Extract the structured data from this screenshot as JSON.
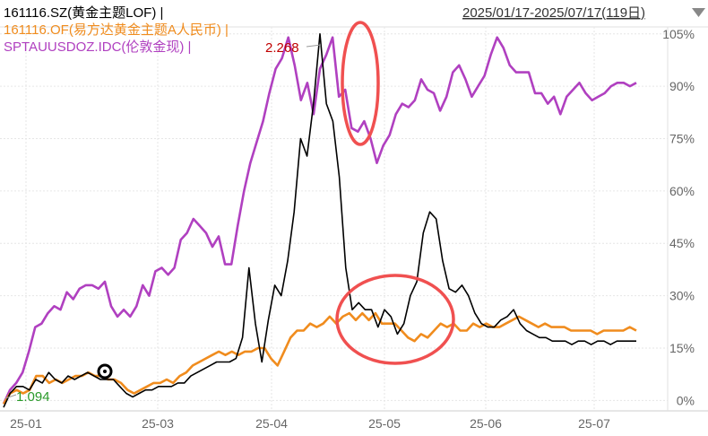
{
  "header": {
    "legend": [
      {
        "label": "161116.SZ(黄金主题LOF) |",
        "color": "#000000"
      },
      {
        "label": "161116.OF(易方达黄金主题A人民币) |",
        "color": "#f08c1e"
      },
      {
        "label": "SPTAUUSDOZ.IDC(伦敦金现) |",
        "color": "#b040c0"
      }
    ],
    "date_range": "2025/01/17-2025/07/17(119日)",
    "dropdown_icon": "triangle-down-icon"
  },
  "chart_data": {
    "type": "line",
    "x_ticks": [
      "25-01",
      "25-03",
      "25-04",
      "25-05",
      "25-06",
      "25-07"
    ],
    "y_ticks": [
      "0%",
      "15%",
      "30%",
      "45%",
      "60%",
      "75%",
      "90%",
      "105%"
    ],
    "ylim": [
      -3,
      107
    ],
    "grid": true,
    "annotations": {
      "max_label": "2.268",
      "min_label": "1.094",
      "max_color": "#c00000",
      "min_color": "#2a9a2a"
    },
    "highlight_color": "#f05050",
    "series": [
      {
        "name": "161116.SZ(黄金主题LOF)",
        "color": "#000000",
        "values": [
          -2,
          2,
          4,
          4,
          3,
          6,
          5,
          8,
          6,
          5,
          7,
          6,
          7,
          8,
          7,
          6,
          6,
          6,
          4,
          2,
          1,
          2,
          3,
          3,
          4,
          4,
          4,
          5,
          5,
          7,
          8,
          9,
          10,
          11,
          11,
          11,
          12,
          18,
          38,
          22,
          11,
          23,
          33,
          30,
          40,
          54,
          75,
          70,
          85,
          105,
          85,
          80,
          64,
          38,
          26,
          28,
          26,
          26,
          21,
          26,
          24,
          19,
          22,
          30,
          34,
          48,
          54,
          52,
          40,
          32,
          31,
          33,
          30,
          25,
          22,
          21,
          21,
          23,
          24,
          26,
          22,
          20,
          19,
          18,
          18,
          17,
          17,
          17,
          16,
          17,
          17,
          16,
          17,
          17,
          16,
          17,
          17,
          17,
          17
        ],
        "first_index": 0
      },
      {
        "name": "161116.OF(易方达黄金主题A人民币)",
        "color": "#f08c1e",
        "values": [
          -1,
          2,
          3,
          2,
          3,
          7,
          7,
          5,
          6,
          5,
          6,
          7,
          7,
          8,
          7,
          7,
          6,
          6,
          5,
          3,
          2,
          3,
          4,
          5,
          5,
          6,
          5,
          7,
          8,
          10,
          11,
          12,
          13,
          14,
          13,
          14,
          13,
          14,
          14,
          15,
          15,
          12,
          10,
          14,
          18,
          20,
          20,
          22,
          21,
          22,
          24,
          22,
          24,
          25,
          23,
          25,
          23,
          25,
          22,
          22,
          22,
          20,
          18,
          17,
          19,
          18,
          20,
          22,
          21,
          22,
          20,
          20,
          22,
          21,
          22,
          21,
          21,
          22,
          23,
          24,
          23,
          22,
          21,
          22,
          21,
          21,
          21,
          20,
          20,
          20,
          20,
          19,
          20,
          20,
          20,
          20,
          21,
          20
        ],
        "first_index": 0
      },
      {
        "name": "SPTAUUSDOZ.IDC(伦敦金现)",
        "color": "#b040c0",
        "values": [
          -1,
          3,
          5,
          8,
          14,
          21,
          22,
          25,
          27,
          26,
          31,
          29,
          32,
          33,
          33,
          32,
          34,
          27,
          24,
          26,
          24,
          27,
          33,
          30,
          37,
          38,
          36,
          38,
          46,
          48,
          52,
          50,
          48,
          44,
          47,
          39,
          39,
          50,
          60,
          68,
          74,
          80,
          88,
          95,
          98,
          104,
          96,
          86,
          91,
          82,
          95,
          99,
          104,
          87,
          89,
          78,
          77,
          80,
          75,
          68,
          73,
          76,
          82,
          85,
          84,
          86,
          92,
          89,
          88,
          83,
          87,
          94,
          96,
          92,
          87,
          90,
          93,
          99,
          104,
          101,
          96,
          94,
          94,
          94,
          88,
          88,
          85,
          87,
          82,
          87,
          89,
          91,
          88,
          86,
          87,
          88,
          90,
          91,
          91,
          90,
          91
        ]
      }
    ]
  }
}
